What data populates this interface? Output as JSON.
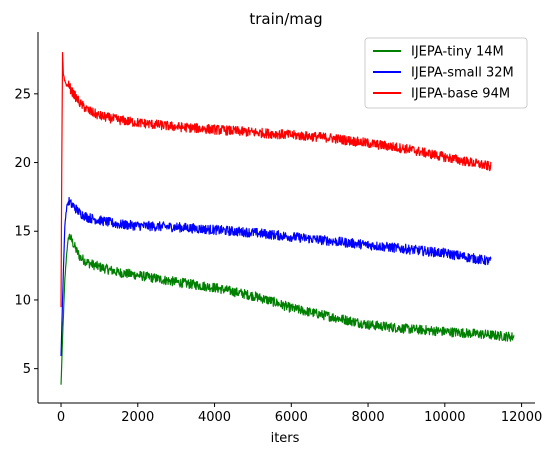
{
  "chart_data": {
    "type": "line",
    "title": "train/mag",
    "xlabel": "iters",
    "ylabel": "",
    "xlim": [
      -600,
      12350
    ],
    "ylim": [
      2.5,
      29.5
    ],
    "xticks": [
      0,
      2000,
      4000,
      6000,
      8000,
      10000,
      12000
    ],
    "xtick_labels": [
      "0",
      "2000",
      "4000",
      "6000",
      "8000",
      "10000",
      "12000"
    ],
    "yticks": [
      5,
      10,
      15,
      20,
      25
    ],
    "ytick_labels": [
      "5",
      "10",
      "15",
      "20",
      "25"
    ],
    "grid": false,
    "legend_position": "top-right",
    "noise_band": true,
    "series": [
      {
        "name": "IJEPA-tiny 14M",
        "color": "#008000",
        "x": [
          0,
          50,
          100,
          150,
          200,
          250,
          300,
          400,
          500,
          700,
          1000,
          1500,
          2000,
          3000,
          4000,
          5000,
          5500,
          6000,
          7000,
          8000,
          9000,
          10000,
          11000,
          11800
        ],
        "y": [
          3.8,
          8.0,
          11.5,
          13.5,
          14.7,
          14.5,
          14.2,
          13.6,
          13.1,
          12.7,
          12.4,
          12.0,
          11.8,
          11.3,
          10.9,
          10.3,
          9.9,
          9.4,
          8.8,
          8.2,
          7.9,
          7.7,
          7.5,
          7.3
        ],
        "noise": 0.35
      },
      {
        "name": "IJEPA-small 32M",
        "color": "#0000ff",
        "x": [
          0,
          50,
          100,
          150,
          200,
          250,
          300,
          400,
          500,
          700,
          1000,
          1500,
          2000,
          3000,
          4000,
          5000,
          6000,
          7000,
          8000,
          9000,
          10000,
          11200
        ],
        "y": [
          6.0,
          11.0,
          15.5,
          16.8,
          17.2,
          17.0,
          16.9,
          16.6,
          16.3,
          16.0,
          15.8,
          15.5,
          15.4,
          15.3,
          15.1,
          14.9,
          14.6,
          14.3,
          14.0,
          13.7,
          13.4,
          12.8
        ],
        "noise": 0.35
      },
      {
        "name": "IJEPA-base 94M",
        "color": "#ff0000",
        "x": [
          0,
          20,
          40,
          60,
          100,
          150,
          200,
          300,
          400,
          500,
          700,
          1000,
          1500,
          2000,
          3000,
          4000,
          5000,
          6000,
          7000,
          8000,
          9000,
          10000,
          11200
        ],
        "y": [
          9.5,
          20.0,
          28.0,
          26.5,
          25.9,
          25.6,
          25.6,
          25.1,
          24.7,
          24.3,
          23.8,
          23.4,
          23.1,
          22.9,
          22.6,
          22.4,
          22.2,
          22.0,
          21.8,
          21.4,
          21.0,
          20.4,
          19.7
        ],
        "noise": 0.35
      }
    ]
  }
}
